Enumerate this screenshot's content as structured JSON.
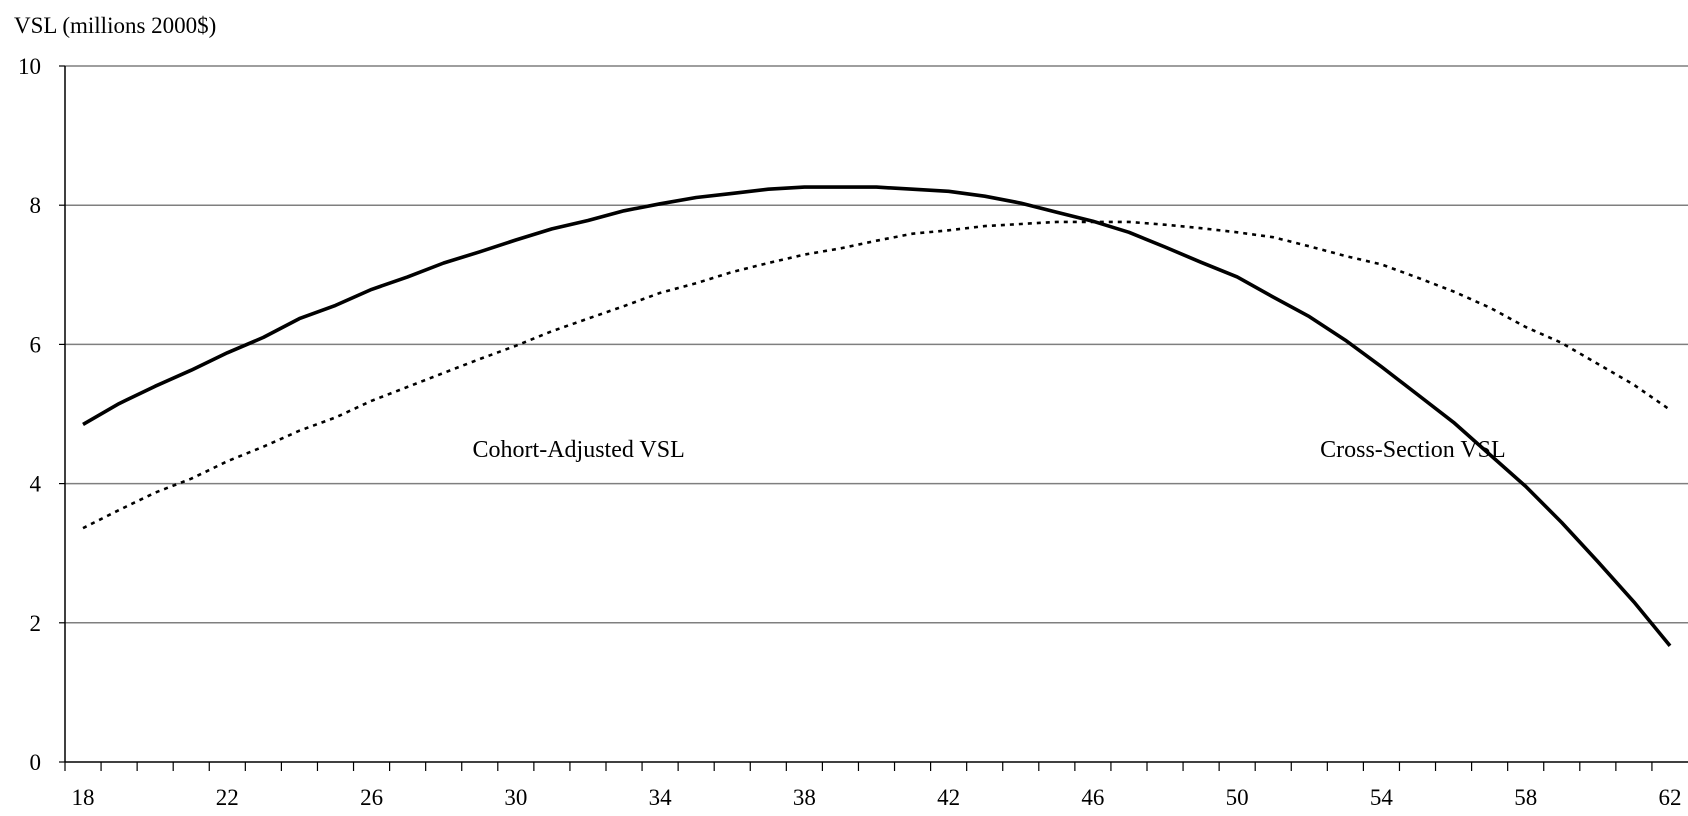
{
  "chart_data": {
    "type": "line",
    "ylabel": "VSL (millions 2000$)",
    "xlabel": "",
    "xlim": [
      17.5,
      62.5
    ],
    "ylim": [
      0,
      10
    ],
    "x_ticks": [
      "18",
      "22",
      "26",
      "30",
      "34",
      "38",
      "42",
      "46",
      "50",
      "54",
      "58",
      "62"
    ],
    "y_ticks": [
      "0",
      "2",
      "4",
      "6",
      "8",
      "10"
    ],
    "grid": true,
    "annotations": [
      {
        "text": "Cohort-Adjusted VSL",
        "x": 28.8,
        "y": 4.5
      },
      {
        "text": "Cross-Section VSL",
        "x": 52.3,
        "y": 4.5
      }
    ],
    "series": [
      {
        "style": "solid",
        "color": "#000000",
        "x": [
          18,
          19,
          20,
          21,
          22,
          23,
          24,
          25,
          26,
          27,
          28,
          29,
          30,
          31,
          32,
          33,
          34,
          35,
          36,
          37,
          38,
          39,
          40,
          41,
          42,
          43,
          44,
          45,
          46,
          47,
          48,
          49,
          50,
          51,
          52,
          53,
          54,
          55,
          56,
          57,
          58,
          59,
          60,
          61,
          62
        ],
        "y": [
          4.85,
          5.15,
          5.4,
          5.63,
          5.88,
          6.1,
          6.37,
          6.56,
          6.79,
          6.97,
          7.17,
          7.33,
          7.5,
          7.66,
          7.78,
          7.92,
          8.02,
          8.11,
          8.17,
          8.23,
          8.26,
          8.26,
          8.26,
          8.23,
          8.2,
          8.13,
          8.03,
          7.9,
          7.77,
          7.61,
          7.4,
          7.18,
          6.97,
          6.68,
          6.4,
          6.06,
          5.68,
          5.28,
          4.88,
          4.42,
          3.96,
          3.44,
          2.88,
          2.3,
          1.67
        ]
      },
      {
        "style": "dotted",
        "color": "#000000",
        "x": [
          18,
          19,
          20,
          21,
          22,
          23,
          24,
          25,
          26,
          27,
          28,
          29,
          30,
          31,
          32,
          33,
          34,
          35,
          36,
          37,
          38,
          39,
          40,
          41,
          42,
          43,
          44,
          45,
          46,
          47,
          48,
          49,
          50,
          51,
          52,
          53,
          54,
          55,
          56,
          57,
          58,
          59,
          60,
          61,
          62
        ],
        "y": [
          3.36,
          3.62,
          3.87,
          4.07,
          4.32,
          4.53,
          4.76,
          4.95,
          5.19,
          5.39,
          5.59,
          5.79,
          5.98,
          6.19,
          6.37,
          6.55,
          6.74,
          6.88,
          7.04,
          7.17,
          7.29,
          7.38,
          7.49,
          7.59,
          7.64,
          7.7,
          7.73,
          7.76,
          7.76,
          7.76,
          7.72,
          7.67,
          7.61,
          7.54,
          7.41,
          7.27,
          7.15,
          6.96,
          6.76,
          6.53,
          6.25,
          6.02,
          5.72,
          5.42,
          5.06
        ]
      }
    ]
  }
}
